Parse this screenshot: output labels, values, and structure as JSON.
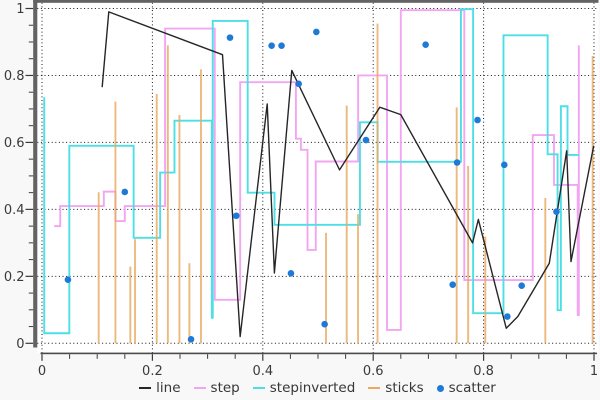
{
  "chart_data": {
    "type": [
      "line",
      "step",
      "scatter",
      "bar"
    ],
    "title": "",
    "xlabel": "",
    "ylabel": "",
    "xlim": [
      0,
      1
    ],
    "ylim": [
      0,
      1
    ],
    "x_tick_labels": [
      "0",
      "0.2",
      "0.4",
      "0.6",
      "0.8",
      "1"
    ],
    "y_tick_labels": [
      "1",
      "0.8",
      "0.6",
      "0.4",
      "0.2",
      "0"
    ],
    "x_tick_values": [
      0,
      0.2,
      0.4,
      0.6,
      0.8,
      1
    ],
    "y_tick_values": [
      1,
      0.8,
      0.6,
      0.4,
      0.2,
      0
    ],
    "minor_tick_step": 0.05,
    "grid": "dotted",
    "legend_position": "bottom-center",
    "series": [
      {
        "name": "line",
        "type": "line",
        "color": "#262626",
        "points": [
          [
            0.109,
            0.765
          ],
          [
            0.121,
            0.99
          ],
          [
            0.327,
            0.862
          ],
          [
            0.359,
            0.02
          ],
          [
            0.408,
            0.715
          ],
          [
            0.421,
            0.21
          ],
          [
            0.4525,
            0.815
          ],
          [
            0.539,
            0.518
          ],
          [
            0.612,
            0.705
          ],
          [
            0.65,
            0.683
          ],
          [
            0.78,
            0.3
          ],
          [
            0.7905,
            0.37
          ],
          [
            0.841,
            0.045
          ],
          [
            0.862,
            0.08
          ],
          [
            0.919,
            0.239
          ],
          [
            0.9505,
            0.575
          ],
          [
            0.9583,
            0.244
          ],
          [
            0.9995,
            0.59
          ]
        ]
      },
      {
        "name": "step",
        "type": "step",
        "color": "#f2a6f2",
        "points": [
          [
            0.022,
            0.35
          ],
          [
            0.033,
            0.41
          ],
          [
            0.112,
            0.453
          ],
          [
            0.133,
            0.365
          ],
          [
            0.15,
            0.41
          ],
          [
            0.223,
            0.94
          ],
          [
            0.313,
            0.13
          ],
          [
            0.359,
            0.78
          ],
          [
            0.46,
            0.611
          ],
          [
            0.469,
            0.578
          ],
          [
            0.481,
            0.279
          ],
          [
            0.496,
            0.543
          ],
          [
            0.5727,
            0.8
          ],
          [
            0.625,
            0.04
          ],
          [
            0.65,
            0.995
          ],
          [
            0.765,
            0.189
          ],
          [
            0.889,
            0.622
          ],
          [
            0.9275,
            0.473
          ],
          [
            0.9705,
            0.0845
          ],
          [
            0.9725,
            0.89
          ]
        ]
      },
      {
        "name": "stepinverted",
        "type": "step-inverted",
        "color": "#4cdfe6",
        "points": [
          [
            0.004,
            0.735
          ],
          [
            0.0495,
            0.03
          ],
          [
            0.166,
            0.59
          ],
          [
            0.214,
            0.315
          ],
          [
            0.24,
            0.51
          ],
          [
            0.3077,
            0.665
          ],
          [
            0.3093,
            0.076
          ],
          [
            0.3726,
            0.963
          ],
          [
            0.4212,
            0.45
          ],
          [
            0.576,
            0.354
          ],
          [
            0.608,
            0.66
          ],
          [
            0.759,
            0.542
          ],
          [
            0.781,
            0.998
          ],
          [
            0.836,
            0.09
          ],
          [
            0.916,
            0.92
          ],
          [
            0.934,
            0.5645
          ],
          [
            0.94,
            0.099
          ],
          [
            0.952,
            0.708
          ],
          [
            0.973,
            0.5626
          ]
        ]
      },
      {
        "name": "sticks",
        "type": "sticks",
        "baseline": 0,
        "color": "#e9aa60",
        "points": [
          [
            0.1027,
            0.451
          ],
          [
            0.133,
            0.722
          ],
          [
            0.16,
            0.229
          ],
          [
            0.1685,
            0.311
          ],
          [
            0.2078,
            0.745
          ],
          [
            0.228,
            0.89
          ],
          [
            0.249,
            0.682
          ],
          [
            0.267,
            0.239
          ],
          [
            0.288,
            0.818
          ],
          [
            0.5145,
            0.33
          ],
          [
            0.552,
            0.71
          ],
          [
            0.5725,
            0.386
          ],
          [
            0.6078,
            0.955
          ],
          [
            0.7512,
            0.7045
          ],
          [
            0.772,
            0.53
          ],
          [
            0.8031,
            0.319
          ],
          [
            0.9118,
            0.434
          ],
          [
            0.9976,
            0.858
          ]
        ]
      },
      {
        "name": "scatter",
        "type": "scatter",
        "color": "#1e7ad6",
        "points": [
          [
            0.047,
            0.19
          ],
          [
            0.15,
            0.452
          ],
          [
            0.27,
            0.012
          ],
          [
            0.3406,
            0.913
          ],
          [
            0.352,
            0.381
          ],
          [
            0.416,
            0.889
          ],
          [
            0.434,
            0.889
          ],
          [
            0.451,
            0.209
          ],
          [
            0.465,
            0.775
          ],
          [
            0.497,
            0.93
          ],
          [
            0.512,
            0.057
          ],
          [
            0.587,
            0.607
          ],
          [
            0.695,
            0.892
          ],
          [
            0.744,
            0.175
          ],
          [
            0.752,
            0.54
          ],
          [
            0.789,
            0.667
          ],
          [
            0.8375,
            0.533
          ],
          [
            0.843,
            0.08
          ],
          [
            0.869,
            0.172
          ],
          [
            0.932,
            0.393
          ]
        ]
      }
    ],
    "legend": [
      {
        "label": "line",
        "marker": "dash",
        "color": "#262626"
      },
      {
        "label": "step",
        "marker": "dash",
        "color": "#f2a6f2"
      },
      {
        "label": "stepinverted",
        "marker": "dash",
        "color": "#4cdfe6"
      },
      {
        "label": "sticks",
        "marker": "dash",
        "color": "#e9aa60"
      },
      {
        "label": "scatter",
        "marker": "dot",
        "color": "#1e7ad6"
      }
    ],
    "colors": {
      "page_background": "#f8f8f8",
      "plot_background": "#ffffff",
      "axis_bar": "#636363",
      "axis_line": "#4a4a4a",
      "tick": "#3b3b3b",
      "tick_label": "#3a3a3a",
      "grid": "#161616",
      "legend_text": "#363636"
    }
  }
}
